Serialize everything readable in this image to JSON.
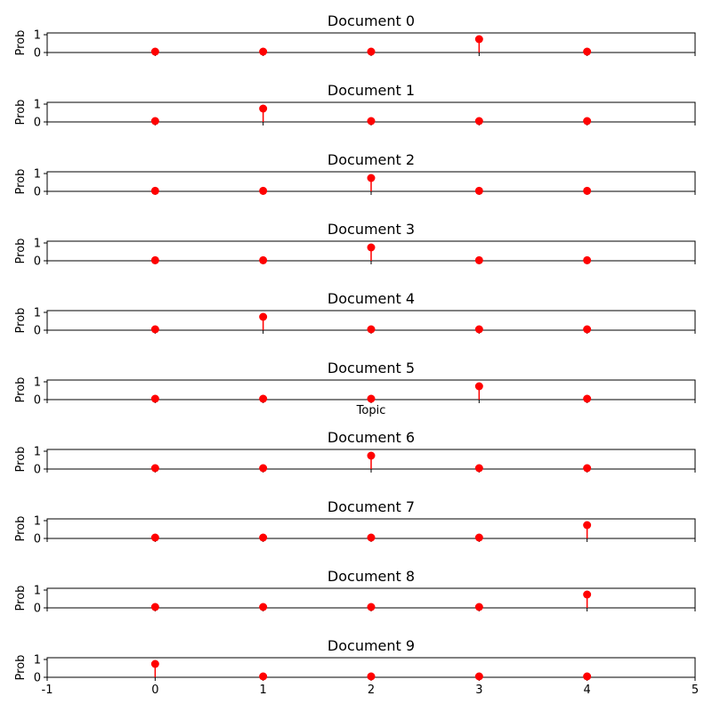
{
  "chart_data": {
    "type": "stem",
    "x": [
      0,
      1,
      2,
      3,
      4
    ],
    "xlim": [
      -1,
      5
    ],
    "ylim": [
      0,
      1.1
    ],
    "x_ticks": [
      "-1",
      "0",
      "1",
      "2",
      "3",
      "4",
      "5"
    ],
    "y_ticks": [
      "0",
      "1"
    ],
    "ylabel": "Prob",
    "xlabel": "Topic",
    "marker_color": "#ff0000",
    "subplots": [
      {
        "title": "Document 0",
        "values": [
          0.05,
          0.05,
          0.05,
          0.75,
          0.05
        ]
      },
      {
        "title": "Document 1",
        "values": [
          0.05,
          0.75,
          0.05,
          0.05,
          0.05
        ]
      },
      {
        "title": "Document 2",
        "values": [
          0.03,
          0.03,
          0.75,
          0.03,
          0.03
        ]
      },
      {
        "title": "Document 3",
        "values": [
          0.03,
          0.03,
          0.75,
          0.03,
          0.03
        ]
      },
      {
        "title": "Document 4",
        "values": [
          0.05,
          0.75,
          0.05,
          0.05,
          0.05
        ]
      },
      {
        "title": "Document 5",
        "values": [
          0.05,
          0.05,
          0.05,
          0.75,
          0.05
        ]
      },
      {
        "title": "Document 6",
        "values": [
          0.05,
          0.05,
          0.75,
          0.05,
          0.05
        ]
      },
      {
        "title": "Document 7",
        "values": [
          0.05,
          0.05,
          0.05,
          0.05,
          0.75
        ]
      },
      {
        "title": "Document 8",
        "values": [
          0.05,
          0.05,
          0.05,
          0.05,
          0.75
        ]
      },
      {
        "title": "Document 9",
        "values": [
          0.75,
          0.05,
          0.05,
          0.05,
          0.05
        ]
      }
    ]
  }
}
